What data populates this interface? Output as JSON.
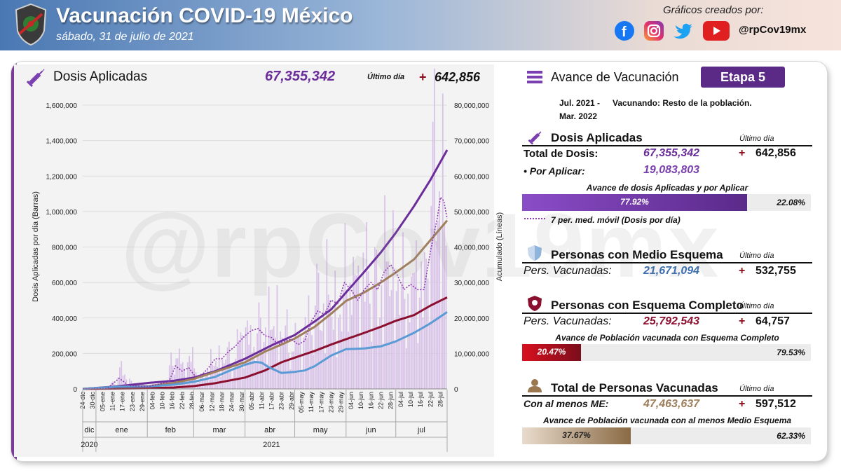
{
  "header": {
    "title": "Vacunación COVID-19 México",
    "date": "sábado, 31 de julio de 2021",
    "credit": "Gráficos creados por:",
    "handle": "@rpCov19mx",
    "watermark": "@rpCov19mx"
  },
  "left_panel": {
    "title": "Dosis Aplicadas",
    "total": "67,355,342",
    "ultimo_label": "Último día",
    "plus": "+",
    "ultimo_value": "642,856"
  },
  "right_panel": {
    "title": "Avance de Vacunación",
    "etapa": "Etapa 5",
    "period_line1": "Jul. 2021 -",
    "period_line2": "Mar. 2022",
    "period_desc": "Vacunando: Resto de la población.",
    "dosis": {
      "title": "Dosis Aplicadas",
      "ultimo_label": "Último día",
      "total_label": "Total de Dosis:",
      "total_value": "67,355,342",
      "total_plus": "+",
      "total_last": "642,856",
      "por_label": "• Por Aplicar:",
      "por_value": "19,083,803",
      "bar_title": "Avance de dosis Aplicadas y por Aplicar",
      "bar_fill": 77.92,
      "bar_in": "77.92%",
      "bar_out": "22.08%",
      "legend": "7 per. med. móvil (Dosis por día)"
    },
    "medio": {
      "title": "Personas con Medio Esquema",
      "ultimo_label": "Último día",
      "label": "Pers. Vacunadas:",
      "value": "21,671,094",
      "plus": "+",
      "last": "532,755"
    },
    "completo": {
      "title": "Personas con Esquema Completo",
      "ultimo_label": "Último día",
      "label": "Pers. Vacunadas:",
      "value": "25,792,543",
      "plus": "+",
      "last": "64,757",
      "bar_title": "Avance de Población vacunada con Esquema Completo",
      "bar_fill": 20.47,
      "bar_in": "20.47%",
      "bar_out": "79.53%"
    },
    "total": {
      "title": "Total de Personas Vacunadas",
      "ultimo_label": "Último día",
      "label": "Con al menos ME:",
      "value": "47,463,637",
      "plus": "+",
      "last": "597,512",
      "bar_title": "Avance de Población vacunada con al menos Medio Esquema",
      "bar_fill": 37.67,
      "bar_in": "37.67%",
      "bar_out": "62.33%"
    }
  },
  "colors": {
    "purple": "#6a2d9a",
    "tan": "#a07f5c",
    "crimson": "#8b1030",
    "blue": "#5b9bd5",
    "bar": "#d9c2e8",
    "fill_purple": "#7a3fb0",
    "fill_red": "#c8102e",
    "fill_tan": "#a08060"
  },
  "chart_data": {
    "type": "bar+line",
    "ylabel": "Dosis Aplicadas por día (Barras)",
    "y2label": "Acumulado (Líneas)",
    "ylim": [
      0,
      1600000
    ],
    "y2lim": [
      0,
      80000000
    ],
    "yticks": [
      "0",
      "200,000",
      "400,000",
      "600,000",
      "800,000",
      "1,000,000",
      "1,200,000",
      "1,400,000",
      "1,600,000"
    ],
    "y2ticks": [
      "0",
      "10,000,000",
      "20,000,000",
      "30,000,000",
      "40,000,000",
      "50,000,000",
      "60,000,000",
      "70,000,000",
      "80,000,000"
    ],
    "x_ticks": [
      "24-dic",
      "30-dic",
      "05-ene",
      "11-ene",
      "17-ene",
      "23-ene",
      "29-ene",
      "04-feb",
      "10-feb",
      "16-feb",
      "22-feb",
      "28-feb",
      "06-mar",
      "12-mar",
      "18-mar",
      "24-mar",
      "30-mar",
      "05-abr",
      "11-abr",
      "17-abr",
      "23-abr",
      "29-abr",
      "05-may",
      "11-may",
      "17-may",
      "23-may",
      "29-may",
      "04-jun",
      "10-jun",
      "16-jun",
      "22-jun",
      "28-jun",
      "04-jul",
      "10-jul",
      "16-jul",
      "22-jul",
      "28-jul"
    ],
    "months": [
      {
        "label": "dic",
        "start": 0,
        "end": 8
      },
      {
        "label": "ene",
        "start": 8,
        "end": 39
      },
      {
        "label": "feb",
        "start": 39,
        "end": 67
      },
      {
        "label": "mar",
        "start": 67,
        "end": 98
      },
      {
        "label": "abr",
        "start": 98,
        "end": 128
      },
      {
        "label": "may",
        "start": 128,
        "end": 159
      },
      {
        "label": "jun",
        "start": 159,
        "end": 189
      },
      {
        "label": "jul",
        "start": 189,
        "end": 220
      }
    ],
    "years": [
      {
        "label": "2020",
        "start": 0,
        "end": 8
      },
      {
        "label": "2021",
        "start": 8,
        "end": 220
      }
    ],
    "days_total": 220,
    "bar_points": [
      [
        0,
        0
      ],
      [
        10,
        3000
      ],
      [
        20,
        40000
      ],
      [
        22,
        140000
      ],
      [
        24,
        90000
      ],
      [
        30,
        30000
      ],
      [
        40,
        20000
      ],
      [
        50,
        30000
      ],
      [
        54,
        200000
      ],
      [
        56,
        260000
      ],
      [
        58,
        170000
      ],
      [
        62,
        120000
      ],
      [
        66,
        200000
      ],
      [
        70,
        60000
      ],
      [
        74,
        100000
      ],
      [
        78,
        190000
      ],
      [
        82,
        180000
      ],
      [
        86,
        230000
      ],
      [
        90,
        170000
      ],
      [
        94,
        290000
      ],
      [
        98,
        350000
      ],
      [
        102,
        270000
      ],
      [
        104,
        450000
      ],
      [
        108,
        330000
      ],
      [
        112,
        420000
      ],
      [
        116,
        460000
      ],
      [
        120,
        380000
      ],
      [
        124,
        320000
      ],
      [
        128,
        300000
      ],
      [
        132,
        290000
      ],
      [
        136,
        410000
      ],
      [
        140,
        600000
      ],
      [
        144,
        500000
      ],
      [
        148,
        640000
      ],
      [
        152,
        520000
      ],
      [
        156,
        480000
      ],
      [
        158,
        700000
      ],
      [
        160,
        920000
      ],
      [
        162,
        640000
      ],
      [
        166,
        620000
      ],
      [
        170,
        700000
      ],
      [
        174,
        760000
      ],
      [
        178,
        580000
      ],
      [
        182,
        780000
      ],
      [
        186,
        880000
      ],
      [
        190,
        650000
      ],
      [
        194,
        680000
      ],
      [
        198,
        580000
      ],
      [
        202,
        740000
      ],
      [
        206,
        580000
      ],
      [
        210,
        1250000
      ],
      [
        212,
        1380000
      ],
      [
        214,
        1300000
      ],
      [
        216,
        1450000
      ],
      [
        217,
        1200000
      ],
      [
        218,
        980000
      ],
      [
        219,
        900000
      ],
      [
        220,
        640000
      ]
    ],
    "series": [
      {
        "name": "Dosis Aplicadas",
        "color": "#6a2d9a",
        "axis": "right",
        "points": [
          [
            0,
            0
          ],
          [
            20,
            700000
          ],
          [
            40,
            1700000
          ],
          [
            55,
            2300000
          ],
          [
            67,
            3200000
          ],
          [
            80,
            5000000
          ],
          [
            98,
            8500000
          ],
          [
            115,
            12500000
          ],
          [
            128,
            15200000
          ],
          [
            140,
            19000000
          ],
          [
            150,
            22400000
          ],
          [
            159,
            27200000
          ],
          [
            170,
            33000000
          ],
          [
            180,
            38500000
          ],
          [
            189,
            44000000
          ],
          [
            200,
            51500000
          ],
          [
            210,
            59000000
          ],
          [
            220,
            67355342
          ]
        ]
      },
      {
        "name": "Personas con al menos Medio Esquema",
        "color": "#a07f5c",
        "axis": "right",
        "points": [
          [
            0,
            0
          ],
          [
            20,
            600000
          ],
          [
            40,
            800000
          ],
          [
            55,
            1700000
          ],
          [
            67,
            2800000
          ],
          [
            80,
            4800000
          ],
          [
            98,
            7500000
          ],
          [
            110,
            10500000
          ],
          [
            120,
            12500000
          ],
          [
            128,
            14200000
          ],
          [
            140,
            17500000
          ],
          [
            150,
            21200000
          ],
          [
            159,
            24800000
          ],
          [
            170,
            27200000
          ],
          [
            180,
            30000000
          ],
          [
            189,
            32800000
          ],
          [
            200,
            36500000
          ],
          [
            210,
            42000000
          ],
          [
            220,
            47463637
          ]
        ]
      },
      {
        "name": "Personas con Esquema Completo",
        "color": "#8b1030",
        "axis": "right",
        "points": [
          [
            0,
            0
          ],
          [
            40,
            200000
          ],
          [
            55,
            400000
          ],
          [
            67,
            800000
          ],
          [
            80,
            1600000
          ],
          [
            98,
            3200000
          ],
          [
            110,
            5200000
          ],
          [
            120,
            7500000
          ],
          [
            128,
            8800000
          ],
          [
            140,
            10700000
          ],
          [
            150,
            12500000
          ],
          [
            159,
            14000000
          ],
          [
            170,
            15800000
          ],
          [
            180,
            17500000
          ],
          [
            189,
            19200000
          ],
          [
            200,
            20800000
          ],
          [
            210,
            23500000
          ],
          [
            220,
            25792543
          ]
        ]
      },
      {
        "name": "Personas con Medio Esquema",
        "color": "#5b9bd5",
        "axis": "right",
        "points": [
          [
            0,
            0
          ],
          [
            20,
            600000
          ],
          [
            40,
            700000
          ],
          [
            55,
            1200000
          ],
          [
            67,
            2000000
          ],
          [
            80,
            3400000
          ],
          [
            90,
            5400000
          ],
          [
            98,
            6800000
          ],
          [
            104,
            7600000
          ],
          [
            108,
            7400000
          ],
          [
            112,
            6200000
          ],
          [
            120,
            4500000
          ],
          [
            128,
            4800000
          ],
          [
            134,
            5200000
          ],
          [
            140,
            6400000
          ],
          [
            150,
            9400000
          ],
          [
            159,
            11200000
          ],
          [
            170,
            11400000
          ],
          [
            180,
            12000000
          ],
          [
            189,
            13400000
          ],
          [
            200,
            15800000
          ],
          [
            210,
            18500000
          ],
          [
            220,
            21671094
          ]
        ]
      },
      {
        "name": "7 per. med. móvil (Dosis por día)",
        "color": "#8e3bb0",
        "axis": "left",
        "dashed": true,
        "points": [
          [
            0,
            0
          ],
          [
            15,
            4000
          ],
          [
            22,
            60000
          ],
          [
            28,
            18000
          ],
          [
            40,
            14000
          ],
          [
            52,
            40000
          ],
          [
            56,
            130000
          ],
          [
            60,
            100000
          ],
          [
            64,
            120000
          ],
          [
            68,
            70000
          ],
          [
            72,
            80000
          ],
          [
            76,
            120000
          ],
          [
            80,
            170000
          ],
          [
            84,
            170000
          ],
          [
            88,
            210000
          ],
          [
            92,
            240000
          ],
          [
            96,
            280000
          ],
          [
            98,
            300000
          ],
          [
            102,
            330000
          ],
          [
            106,
            340000
          ],
          [
            110,
            300000
          ],
          [
            114,
            290000
          ],
          [
            118,
            250000
          ],
          [
            122,
            270000
          ],
          [
            126,
            280000
          ],
          [
            130,
            250000
          ],
          [
            134,
            270000
          ],
          [
            138,
            380000
          ],
          [
            142,
            440000
          ],
          [
            146,
            420000
          ],
          [
            150,
            500000
          ],
          [
            154,
            480000
          ],
          [
            158,
            600000
          ],
          [
            162,
            560000
          ],
          [
            166,
            500000
          ],
          [
            170,
            560000
          ],
          [
            174,
            600000
          ],
          [
            178,
            560000
          ],
          [
            182,
            660000
          ],
          [
            186,
            700000
          ],
          [
            190,
            640000
          ],
          [
            194,
            560000
          ],
          [
            198,
            590000
          ],
          [
            202,
            560000
          ],
          [
            206,
            560000
          ],
          [
            210,
            780000
          ],
          [
            214,
            960000
          ],
          [
            216,
            1080000
          ],
          [
            218,
            1060000
          ],
          [
            220,
            960000
          ]
        ]
      }
    ]
  }
}
